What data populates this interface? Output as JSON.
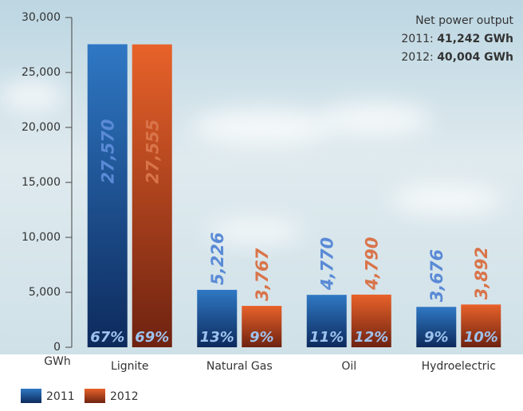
{
  "chart_data": {
    "type": "bar",
    "annotation": {
      "title": "Net power output",
      "lines": [
        {
          "label": "2011:",
          "value": "41,242 GWh"
        },
        {
          "label": "2012:",
          "value": "40,004 GWh"
        }
      ]
    },
    "y_unit": "GWh",
    "categories": [
      "Lignite",
      "Natural Gas",
      "Oil",
      "Hydroelectric"
    ],
    "series": [
      {
        "name": "2011",
        "color": "#2b6cb6",
        "label_color": "#5a8ad6",
        "values": [
          27570,
          5226,
          4770,
          3676
        ],
        "value_labels": [
          "27,570",
          "5,226",
          "4,770",
          "3,676"
        ],
        "share_labels": [
          "67%",
          "13%",
          "11%",
          "9%"
        ]
      },
      {
        "name": "2012",
        "color": "#de5a24",
        "label_color": "#d9744a",
        "values": [
          27555,
          3767,
          4790,
          3892
        ],
        "value_labels": [
          "27,555",
          "3,767",
          "4,790",
          "3,892"
        ],
        "share_labels": [
          "69%",
          "9%",
          "12%",
          "10%"
        ]
      }
    ],
    "ylim": [
      0,
      30000
    ],
    "yticks": [
      0,
      {
        "value": 5000,
        "label": "5,000"
      },
      {
        "value": 10000,
        "label": "10,000"
      },
      {
        "value": 15000,
        "label": "15,000"
      },
      {
        "value": 20000,
        "label": "20,000"
      },
      {
        "value": 25000,
        "label": "25,000"
      },
      {
        "value": 30000,
        "label": "30,000"
      }
    ]
  }
}
